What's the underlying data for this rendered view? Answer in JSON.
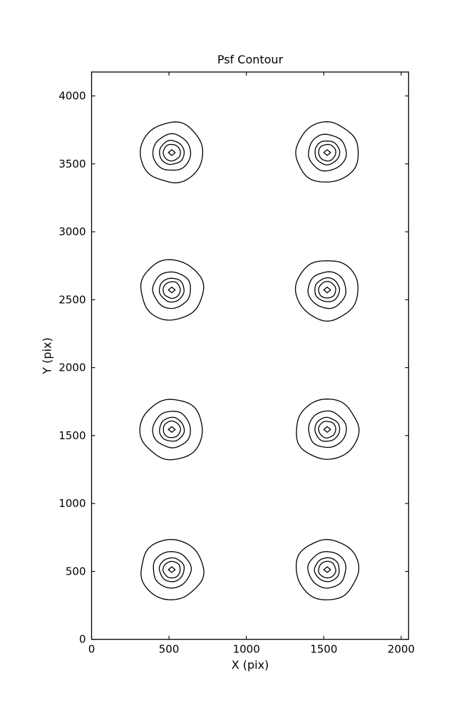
{
  "chart_data": {
    "type": "contour",
    "title": "Psf Contour",
    "xlabel": "X (pix)",
    "ylabel": "Y (pix)",
    "xlim": [
      0,
      2048
    ],
    "ylim": [
      0,
      4176
    ],
    "xticks": [
      0,
      500,
      1000,
      1500,
      2000
    ],
    "yticks": [
      0,
      500,
      1000,
      1500,
      2000,
      2500,
      3000,
      3500,
      4000
    ],
    "grid": false,
    "legend": "none",
    "line_color": "#000000",
    "background_color": "#ffffff",
    "psf_centers": [
      {
        "x": 518,
        "y": 513
      },
      {
        "x": 1522,
        "y": 513
      },
      {
        "x": 518,
        "y": 1545
      },
      {
        "x": 1522,
        "y": 1545
      },
      {
        "x": 518,
        "y": 2572
      },
      {
        "x": 1522,
        "y": 2572
      },
      {
        "x": 518,
        "y": 3583
      },
      {
        "x": 1522,
        "y": 3583
      }
    ],
    "contour_level_radii_pix": [
      215,
      130,
      85,
      59,
      21
    ],
    "levels_per_psf": 5
  }
}
